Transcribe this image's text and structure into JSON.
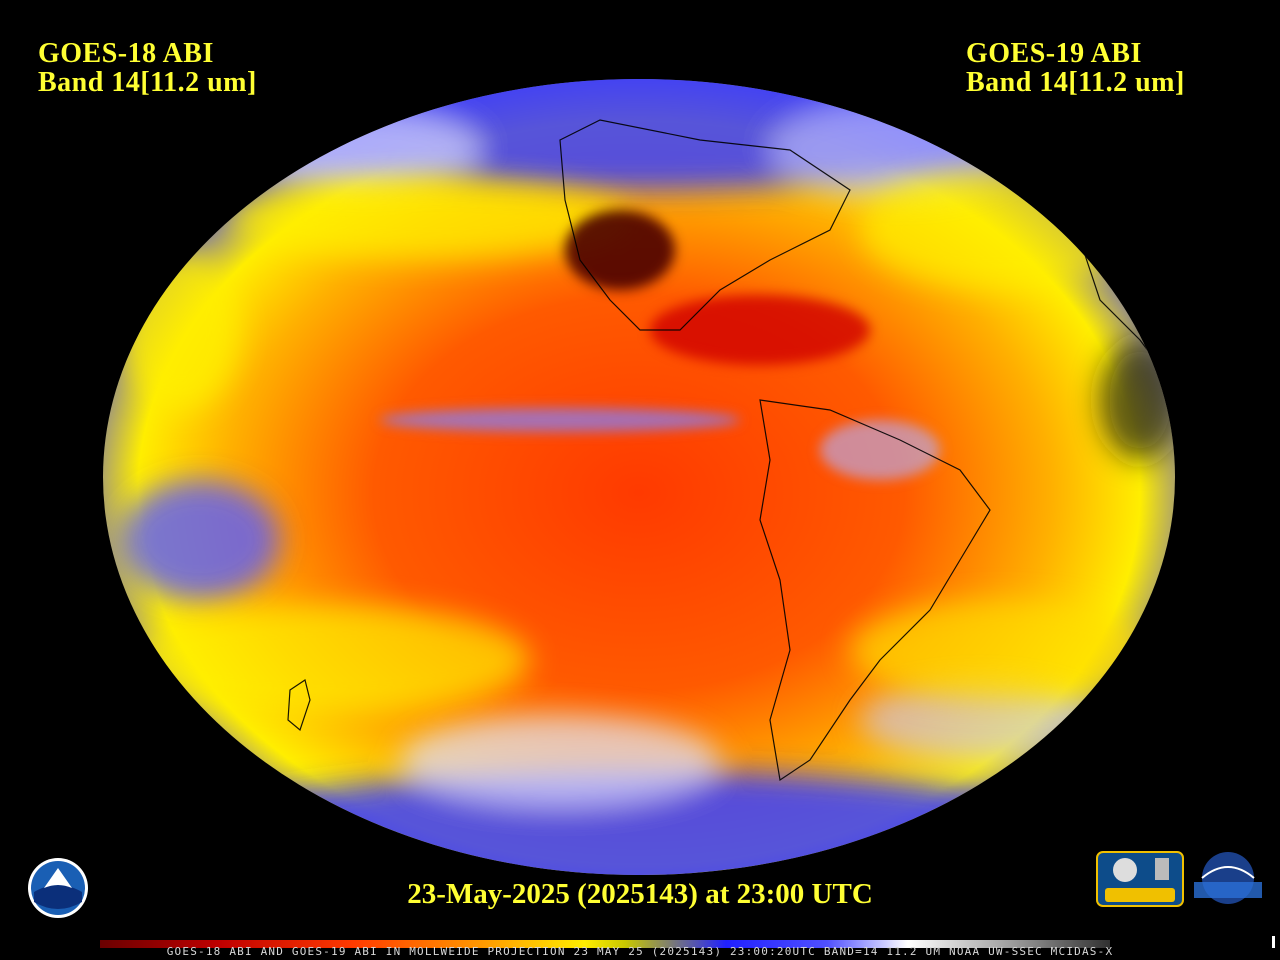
{
  "header": {
    "left": {
      "line1": "GOES-18 ABI",
      "line2": "Band 14[11.2 um]"
    },
    "right": {
      "line1": "GOES-19 ABI",
      "line2": "Band 14[11.2 um]"
    }
  },
  "dateline": "23-May-2025 (2025143) at 23:00 UTC",
  "footer": "GOES-18 ABI AND GOES-19 ABI IN MOLLWEIDE PROJECTION 23 MAY 25 (2025143) 23:00:20UTC BAND=14 11.2 UM NOAA UW-SSEC MCIDAS-X",
  "logos": {
    "noaa": "NOAA",
    "cimss": "CIMSS",
    "ssec": "SSEC"
  },
  "colors": {
    "text_yellow": "#ffff33",
    "warm_red": "#ff3a00",
    "warm_orange": "#ff9a00",
    "yellow": "#ffee00",
    "cold_blue": "#3030ff",
    "coldest_white": "#ffffff",
    "background": "#000000"
  }
}
